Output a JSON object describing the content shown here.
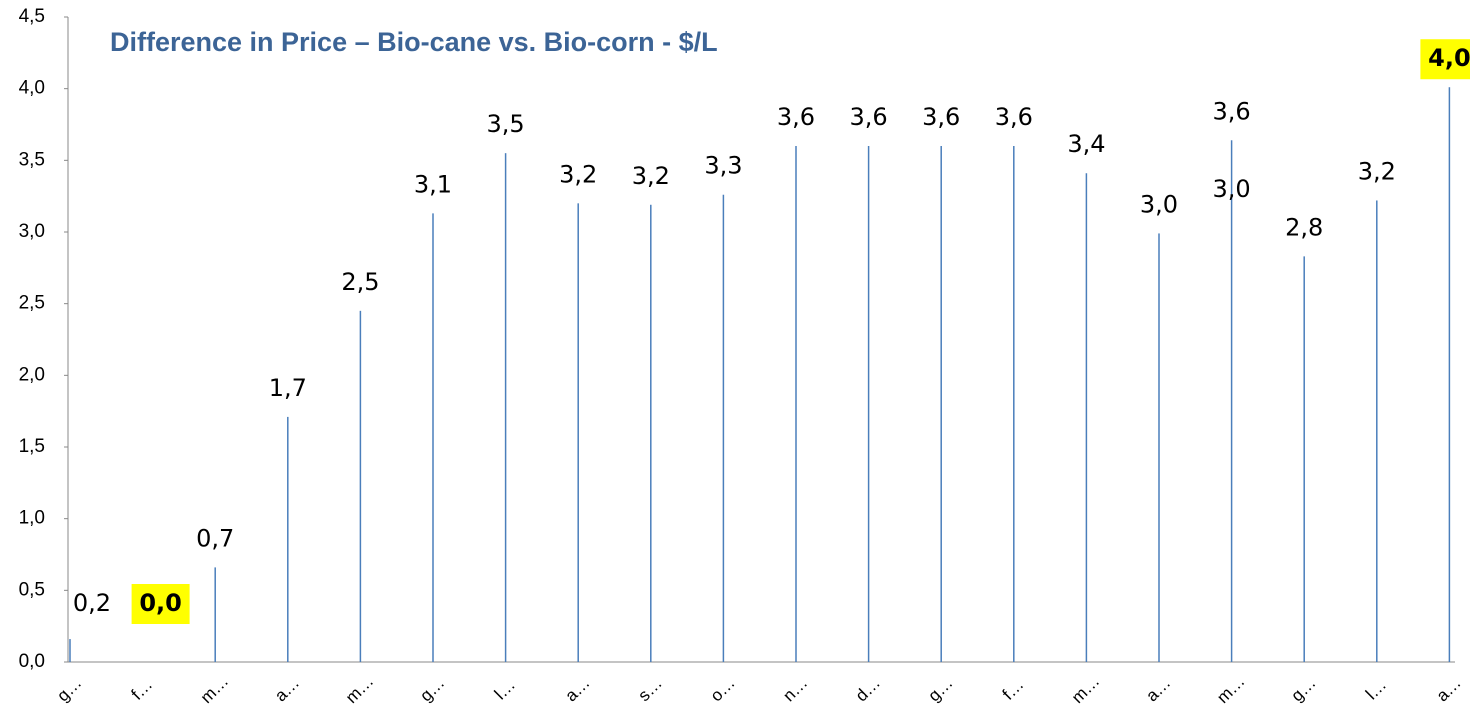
{
  "chart_data": {
    "type": "bar",
    "title": "Difference in Price – Bio-cane vs. Bio-corn - $/L",
    "categories": [
      "g…",
      "f…",
      "m…",
      "a…",
      "m…",
      "g…",
      "l…",
      "a…",
      "s…",
      "o…",
      "n…",
      "d…",
      "g…",
      "f…",
      "m…",
      "a…",
      "m…",
      "g…",
      "l…",
      "a…"
    ],
    "values": [
      0.16,
      0,
      0.66,
      1.71,
      2.45,
      3.13,
      3.55,
      3.2,
      3.19,
      3.26,
      3.6,
      3.6,
      3.6,
      3.6,
      3.41,
      2.99,
      3.64,
      2.83,
      3.22,
      4.01
    ],
    "value_labels": [
      "0,2",
      "0,0",
      "0,7",
      "1,7",
      "2,5",
      "3,1",
      "3,5",
      "3,2",
      "3,2",
      "3,3",
      "3,6",
      "3,6",
      "3,6",
      "3,6",
      "3,4",
      "3,0",
      "3,6",
      "2,8",
      "3,2",
      "4,0"
    ],
    "color": "#4a7ebb",
    "highlighted": [
      1,
      19
    ],
    "highlight_color": "#ffff00",
    "annotations": [
      "3,0"
    ],
    "ylim": [
      0,
      4.5
    ],
    "yticks": [
      {
        "value": 0,
        "label": "0,0"
      },
      {
        "value": 0.5,
        "label": "0,5"
      },
      {
        "value": 1,
        "label": "1,0"
      },
      {
        "value": 1.5,
        "label": "1,5"
      },
      {
        "value": 2,
        "label": "2,0"
      },
      {
        "value": 2.5,
        "label": "2,5"
      },
      {
        "value": 3,
        "label": "3,0"
      },
      {
        "value": 3.5,
        "label": "3,5"
      },
      {
        "value": 4,
        "label": "4,0"
      },
      {
        "value": 4.5,
        "label": "4,5"
      }
    ]
  }
}
